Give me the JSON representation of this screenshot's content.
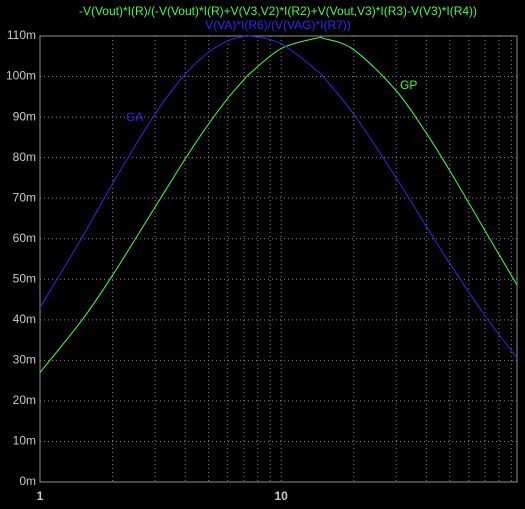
{
  "chart_data": {
    "type": "line",
    "title": "-V(Vout)*I(R)/(-V(Vout)*I(R)+V(V3,V2)*I(R2)+V(Vout,V3)*I(R3)-V(V3)*I(R4))",
    "subtitle": "V(VA)*I(R6)/(V(VAG)*I(R7))",
    "title_color": "#40ff40",
    "subtitle_color": "#2828ff",
    "x": [
      1,
      1.5,
      2,
      3,
      4,
      5,
      6,
      7,
      7.4,
      10,
      14.1,
      15,
      20,
      30,
      40,
      50,
      70,
      95
    ],
    "series": [
      {
        "name": "GP",
        "color": "#40ff40",
        "values": [
          0.027,
          0.0401,
          0.051,
          0.0678,
          0.0797,
          0.0883,
          0.0946,
          0.0992,
          0.1007,
          0.1069,
          0.1095,
          0.1094,
          0.1066,
          0.0965,
          0.086,
          0.0768,
          0.062,
          0.0486
        ]
      },
      {
        "name": "GA",
        "color": "#2828e0",
        "values": [
          0.043,
          0.0605,
          0.0736,
          0.0908,
          0.1006,
          0.106,
          0.1088,
          0.1099,
          0.11,
          0.1081,
          0.1014,
          0.0998,
          0.0907,
          0.075,
          0.063,
          0.0539,
          0.041,
          0.0306
        ]
      }
    ],
    "xscale": "log",
    "xlim": [
      1,
      95
    ],
    "xticks": [
      1,
      10
    ],
    "xminorticks": [
      2,
      3,
      4,
      5,
      6,
      7,
      8,
      9,
      20,
      30,
      40,
      50,
      60,
      70,
      80,
      90
    ],
    "ylim": [
      0,
      0.11
    ],
    "yticks": [
      {
        "value": 0,
        "label": "0m"
      },
      {
        "value": 0.01,
        "label": "10m"
      },
      {
        "value": 0.02,
        "label": "20m"
      },
      {
        "value": 0.03,
        "label": "30m"
      },
      {
        "value": 0.04,
        "label": "40m"
      },
      {
        "value": 0.05,
        "label": "50m"
      },
      {
        "value": 0.06,
        "label": "60m"
      },
      {
        "value": 0.07,
        "label": "70m"
      },
      {
        "value": 0.08,
        "label": "80m"
      },
      {
        "value": 0.09,
        "label": "90m"
      },
      {
        "value": 0.1,
        "label": "100m"
      },
      {
        "value": 0.11,
        "label": "110m"
      }
    ],
    "grid": true
  }
}
